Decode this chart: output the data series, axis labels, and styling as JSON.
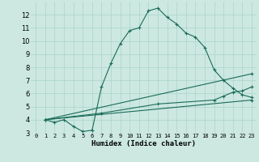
{
  "xlabel": "Humidex (Indice chaleur)",
  "background_color": "#cce8e0",
  "grid_color": "#aad4ca",
  "line_color": "#1a6b5a",
  "xlim": [
    -0.5,
    23.5
  ],
  "ylim": [
    3,
    13
  ],
  "yticks": [
    3,
    4,
    5,
    6,
    7,
    8,
    9,
    10,
    11,
    12
  ],
  "xticks": [
    0,
    1,
    2,
    3,
    4,
    5,
    6,
    7,
    8,
    9,
    10,
    11,
    12,
    13,
    14,
    15,
    16,
    17,
    18,
    19,
    20,
    21,
    22,
    23
  ],
  "line1_x": [
    1,
    2,
    3,
    4,
    5,
    6,
    7,
    8,
    9,
    10,
    11,
    12,
    13,
    14,
    15,
    16,
    17,
    18,
    19,
    20,
    21,
    22,
    23
  ],
  "line1_y": [
    4.0,
    3.8,
    4.0,
    3.5,
    3.1,
    3.2,
    6.5,
    8.3,
    9.8,
    10.8,
    11.0,
    12.3,
    12.5,
    11.8,
    11.3,
    10.6,
    10.3,
    9.5,
    7.8,
    7.0,
    6.4,
    5.9,
    5.7
  ],
  "line2_x": [
    1,
    23
  ],
  "line2_y": [
    4.0,
    5.5
  ],
  "line3_x": [
    1,
    23
  ],
  "line3_y": [
    4.0,
    7.5
  ],
  "line4_x": [
    1,
    7,
    13,
    19,
    20,
    21,
    22,
    23
  ],
  "line4_y": [
    4.0,
    4.5,
    5.2,
    5.5,
    5.8,
    6.1,
    6.2,
    6.5
  ]
}
